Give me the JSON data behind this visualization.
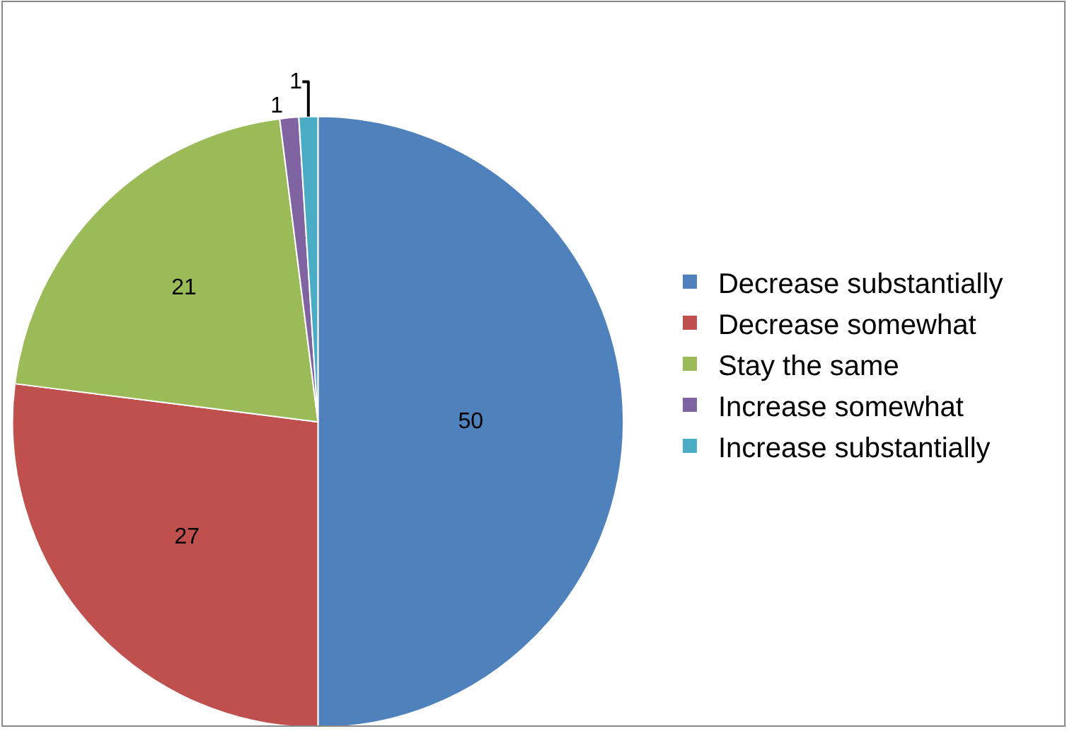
{
  "chart_data": {
    "type": "pie",
    "categories": [
      "Decrease substantially",
      "Decrease somewhat",
      "Stay the same",
      "Increase somewhat",
      "Increase substantially"
    ],
    "values": [
      50,
      27,
      21,
      1,
      1
    ],
    "colors": [
      "#4f81bd",
      "#c0504d",
      "#9bbb59",
      "#8064a2",
      "#4bacc6"
    ],
    "data_labels": true,
    "legend": "right"
  }
}
